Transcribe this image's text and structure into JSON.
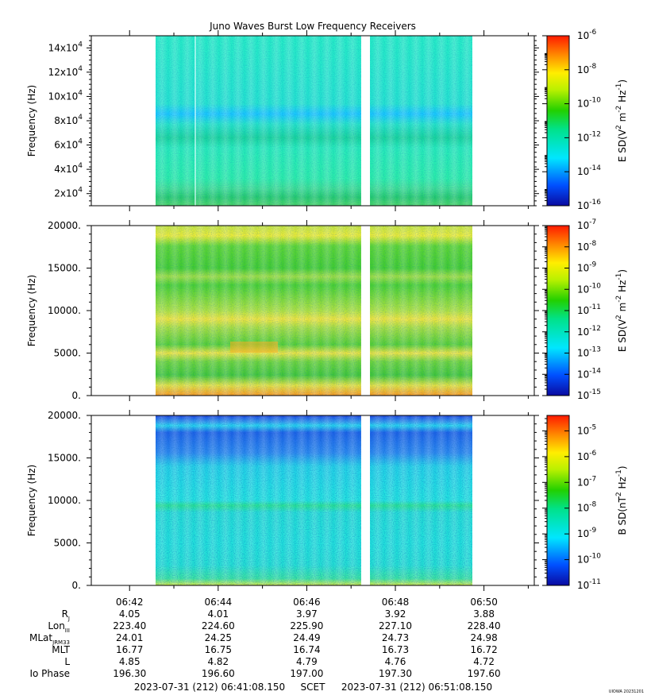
{
  "title": "Juno Waves Burst Low Frequency Receivers",
  "credit": "UIOWA 20231201",
  "time_ticks": [
    "06:42",
    "06:44",
    "06:46",
    "06:48",
    "06:50"
  ],
  "ephemeris": {
    "rows": [
      {
        "label": "R",
        "sub": "J",
        "values": [
          "4.05",
          "4.01",
          "3.97",
          "3.92",
          "3.88"
        ]
      },
      {
        "label": "Lon",
        "sub": "III",
        "values": [
          "223.40",
          "224.60",
          "225.90",
          "227.10",
          "228.40"
        ]
      },
      {
        "label": "MLat",
        "sub": "JRM33",
        "values": [
          "24.01",
          "24.25",
          "24.49",
          "24.73",
          "24.98"
        ]
      },
      {
        "label": "MLT",
        "sub": "",
        "values": [
          "16.77",
          "16.75",
          "16.74",
          "16.73",
          "16.72"
        ]
      },
      {
        "label": "L",
        "sub": "",
        "values": [
          "4.85",
          "4.82",
          "4.79",
          "4.76",
          "4.72"
        ]
      },
      {
        "label": "Io Phase",
        "sub": "",
        "values": [
          "196.30",
          "196.60",
          "197.00",
          "197.30",
          "197.60"
        ]
      }
    ]
  },
  "footer": {
    "start": "2023-07-31 (212) 06:41:08.150",
    "scet": "SCET",
    "end": "2023-07-31 (212) 06:51:08.150"
  },
  "chart_data": [
    {
      "type": "heatmap",
      "ylabel": "Frequency (Hz)",
      "y_ticks": [
        {
          "base": "2x10",
          "exp": "4",
          "value": 20000
        },
        {
          "base": "4x10",
          "exp": "4",
          "value": 40000
        },
        {
          "base": "6x10",
          "exp": "4",
          "value": 60000
        },
        {
          "base": "8x10",
          "exp": "4",
          "value": 80000
        },
        {
          "base": "10x10",
          "exp": "4",
          "value": 100000
        },
        {
          "base": "12x10",
          "exp": "4",
          "value": 120000
        },
        {
          "base": "14x10",
          "exp": "4",
          "value": 140000
        }
      ],
      "ylim": [
        10000,
        150000
      ],
      "colorbar": {
        "label": "E SD(V",
        "label_exp1": "2",
        "label_mid": " m",
        "label_exp2": "-2",
        "label_mid2": " Hz",
        "label_exp3": "-1",
        "label_end": ")",
        "ticks": [
          {
            "base": "10",
            "exp": "-6",
            "value": -6
          },
          {
            "base": "10",
            "exp": "-8",
            "value": -8
          },
          {
            "base": "10",
            "exp": "-10",
            "value": -10
          },
          {
            "base": "10",
            "exp": "-12",
            "value": -12
          },
          {
            "base": "10",
            "exp": "-14",
            "value": -14
          },
          {
            "base": "10",
            "exp": "-16",
            "value": -16
          }
        ],
        "range": [
          -16,
          -6
        ]
      }
    },
    {
      "type": "heatmap",
      "ylabel": "Frequency (Hz)",
      "y_ticks": [
        {
          "label": "0.",
          "value": 0
        },
        {
          "label": "5000.",
          "value": 5000
        },
        {
          "label": "10000.",
          "value": 10000
        },
        {
          "label": "15000.",
          "value": 15000
        },
        {
          "label": "20000.",
          "value": 20000
        }
      ],
      "ylim": [
        0,
        20000
      ],
      "colorbar": {
        "label": "E SD(V",
        "label_exp1": "2",
        "label_mid": " m",
        "label_exp2": "-2",
        "label_mid2": " Hz",
        "label_exp3": "-1",
        "label_end": ")",
        "ticks": [
          {
            "base": "10",
            "exp": "-7",
            "value": -7
          },
          {
            "base": "10",
            "exp": "-8",
            "value": -8
          },
          {
            "base": "10",
            "exp": "-9",
            "value": -9
          },
          {
            "base": "10",
            "exp": "-10",
            "value": -10
          },
          {
            "base": "10",
            "exp": "-11",
            "value": -11
          },
          {
            "base": "10",
            "exp": "-12",
            "value": -12
          },
          {
            "base": "10",
            "exp": "-13",
            "value": -13
          },
          {
            "base": "10",
            "exp": "-14",
            "value": -14
          },
          {
            "base": "10",
            "exp": "-15",
            "value": -15
          }
        ],
        "range": [
          -15,
          -7
        ]
      }
    },
    {
      "type": "heatmap",
      "ylabel": "Frequency (Hz)",
      "y_ticks": [
        {
          "label": "0.",
          "value": 0
        },
        {
          "label": "5000.",
          "value": 5000
        },
        {
          "label": "10000.",
          "value": 10000
        },
        {
          "label": "15000.",
          "value": 15000
        },
        {
          "label": "20000.",
          "value": 20000
        }
      ],
      "ylim": [
        0,
        20000
      ],
      "colorbar": {
        "label": "B SD(nT",
        "label_exp1": "2",
        "label_mid": "",
        "label_exp2": "",
        "label_mid2": " Hz",
        "label_exp3": "-1",
        "label_end": ")",
        "ticks": [
          {
            "base": "10",
            "exp": "-5",
            "value": -5
          },
          {
            "base": "10",
            "exp": "-6",
            "value": -6
          },
          {
            "base": "10",
            "exp": "-7",
            "value": -7
          },
          {
            "base": "10",
            "exp": "-8",
            "value": -8
          },
          {
            "base": "10",
            "exp": "-9",
            "value": -9
          },
          {
            "base": "10",
            "exp": "-10",
            "value": -10
          },
          {
            "base": "10",
            "exp": "-11",
            "value": -11
          }
        ],
        "range": [
          -11,
          -4.4
        ]
      }
    }
  ]
}
